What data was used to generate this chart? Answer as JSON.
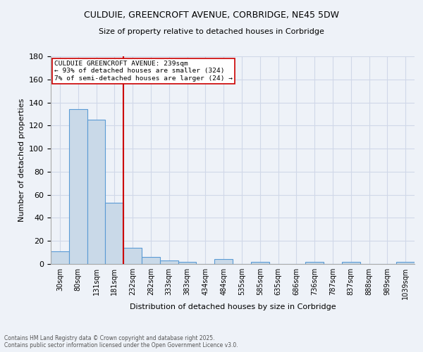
{
  "title_line1": "CULDUIE, GREENCROFT AVENUE, CORBRIDGE, NE45 5DW",
  "title_line2": "Size of property relative to detached houses in Corbridge",
  "xlabel": "Distribution of detached houses by size in Corbridge",
  "ylabel": "Number of detached properties",
  "bar_values": [
    11,
    134,
    125,
    53,
    14,
    6,
    3,
    2,
    0,
    4,
    0,
    2,
    0,
    0,
    2,
    0,
    2,
    0,
    0,
    2
  ],
  "bin_labels": [
    "30sqm",
    "80sqm",
    "131sqm",
    "181sqm",
    "232sqm",
    "282sqm",
    "333sqm",
    "383sqm",
    "434sqm",
    "484sqm",
    "535sqm",
    "585sqm",
    "635sqm",
    "686sqm",
    "736sqm",
    "787sqm",
    "837sqm",
    "888sqm",
    "989sqm",
    "1039sqm"
  ],
  "bar_color": "#c9d9e8",
  "bar_edge_color": "#5b9bd5",
  "grid_color": "#d0d8e8",
  "background_color": "#eef2f8",
  "vline_color": "#cc0000",
  "annotation_text": "CULDUIE GREENCROFT AVENUE: 239sqm\n← 93% of detached houses are smaller (324)\n7% of semi-detached houses are larger (24) →",
  "annotation_box_color": "#ffffff",
  "annotation_box_edge": "#cc0000",
  "footnote": "Contains HM Land Registry data © Crown copyright and database right 2025.\nContains public sector information licensed under the Open Government Licence v3.0.",
  "ylim": [
    0,
    180
  ],
  "yticks": [
    0,
    20,
    40,
    60,
    80,
    100,
    120,
    140,
    160,
    180
  ]
}
